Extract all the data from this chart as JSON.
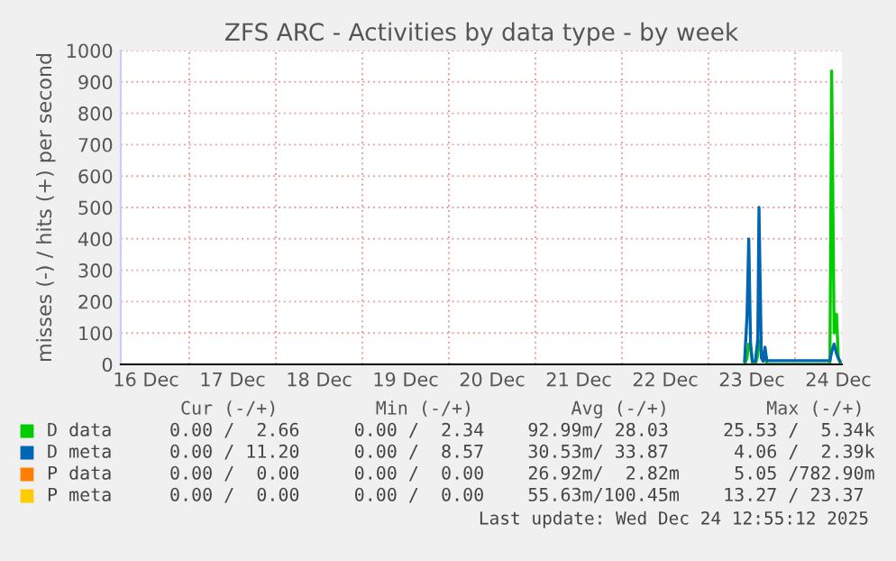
{
  "chart_data": {
    "type": "line",
    "title": "ZFS ARC - Activities by data type - by week",
    "ylabel": "misses (-) / hits (+) per second",
    "x": [
      "2025-12-23T10:00",
      "2025-12-23T10:40",
      "2025-12-23T11:10",
      "2025-12-23T11:40",
      "2025-12-23T12:10",
      "2025-12-23T13:00",
      "2025-12-23T13:40",
      "2025-12-23T14:00",
      "2025-12-23T14:40",
      "2025-12-23T15:10",
      "2025-12-23T15:40",
      "2025-12-23T16:10",
      "2025-12-23T22:00",
      "2025-12-24T00:00",
      "2025-12-24T03:00",
      "2025-12-24T09:40",
      "2025-12-24T10:10",
      "2025-12-24T10:50",
      "2025-12-24T11:30",
      "2025-12-24T12:00",
      "2025-12-24T12:30"
    ],
    "series": [
      {
        "name": "D data",
        "color": "#00cc00",
        "values": [
          0,
          20,
          65,
          65,
          5,
          0,
          30,
          75,
          40,
          10,
          40,
          0,
          0,
          0,
          0,
          0,
          935,
          100,
          160,
          20,
          5
        ]
      },
      {
        "name": "D meta",
        "color": "#0066b3",
        "values": [
          10,
          150,
          400,
          60,
          10,
          10,
          80,
          500,
          20,
          10,
          55,
          12,
          12,
          12,
          12,
          12,
          40,
          65,
          35,
          20,
          10
        ]
      },
      {
        "name": "P data",
        "color": "#ff8000",
        "values": [
          null,
          null,
          null,
          null,
          null,
          null,
          null,
          null,
          null,
          null,
          null,
          null,
          null,
          null,
          null,
          null,
          null,
          null,
          null,
          null,
          null
        ]
      },
      {
        "name": "P meta",
        "color": "#ffcc00",
        "values": [
          null,
          null,
          null,
          null,
          null,
          null,
          null,
          null,
          null,
          null,
          null,
          null,
          null,
          null,
          null,
          null,
          null,
          null,
          null,
          null,
          null
        ]
      }
    ],
    "xlim": [
      "2025-12-16T05:00",
      "2025-12-24T13:00"
    ],
    "xticks": [
      {
        "value": "2025-12-16T12:00",
        "label": "16 Dec"
      },
      {
        "value": "2025-12-17T12:00",
        "label": "17 Dec"
      },
      {
        "value": "2025-12-18T12:00",
        "label": "18 Dec"
      },
      {
        "value": "2025-12-19T12:00",
        "label": "19 Dec"
      },
      {
        "value": "2025-12-20T12:00",
        "label": "20 Dec"
      },
      {
        "value": "2025-12-21T12:00",
        "label": "21 Dec"
      },
      {
        "value": "2025-12-22T12:00",
        "label": "22 Dec"
      },
      {
        "value": "2025-12-23T12:00",
        "label": "23 Dec"
      },
      {
        "value": "2025-12-24T12:00",
        "label": "24 Dec"
      }
    ],
    "ylim": [
      0,
      1000
    ],
    "yticks": [
      0,
      100,
      200,
      300,
      400,
      500,
      600,
      700,
      800,
      900,
      1000
    ],
    "grid": true,
    "legend": "bottom",
    "marker": "none",
    "line_style": "solid",
    "annotations": [
      "Cur (-/+)         Min (-/+)         Avg (-/+)         Max (-/+)",
      "0.00 /  2.66     0.00 /  2.34    92.99m/ 28.03     25.53 /  5.34k",
      "0.00 / 11.20     0.00 /  8.57    30.53m/ 33.87      4.06 /  2.39k",
      "0.00 /  0.00     0.00 /  0.00    26.92m/  2.82m     5.05 /782.90m",
      "0.00 /  0.00     0.00 /  0.00    55.63m/100.45m    13.27 / 23.37",
      "Last update: Wed Dec 24 12:55:12 2025"
    ]
  }
}
